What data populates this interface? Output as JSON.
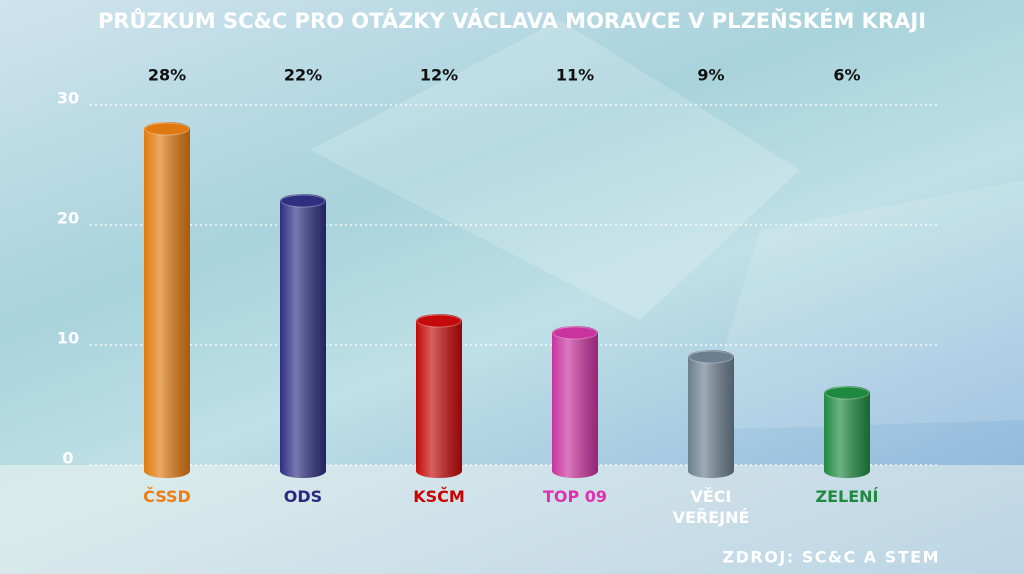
{
  "chart_data": {
    "type": "bar",
    "title": "PRŮZKUM SC&C PRO OTÁZKY VÁCLAVA MORAVCE V PLZEŇSKÉM KRAJI",
    "source": "ZDROJ: SC&C A STEM",
    "categories": [
      "ČSSD",
      "ODS",
      "KSČM",
      "TOP 09",
      "VĚCI VEŘEJNÉ",
      "ZELENÍ"
    ],
    "values": [
      28,
      22,
      12,
      11,
      9,
      6
    ],
    "value_labels": [
      "28%",
      "22%",
      "12%",
      "11%",
      "9%",
      "6%"
    ],
    "colors": [
      "#e07a10",
      "#2f2f82",
      "#c40a0a",
      "#c8339e",
      "#6b7f8f",
      "#1e8a40"
    ],
    "label_colors": [
      "#f07d10",
      "#2a2a80",
      "#cc0000",
      "#e030b0",
      "#ffffff",
      "#1e8a40"
    ],
    "ylim": [
      0,
      30
    ],
    "yticks": [
      0,
      10,
      20,
      30
    ],
    "grid": true
  }
}
